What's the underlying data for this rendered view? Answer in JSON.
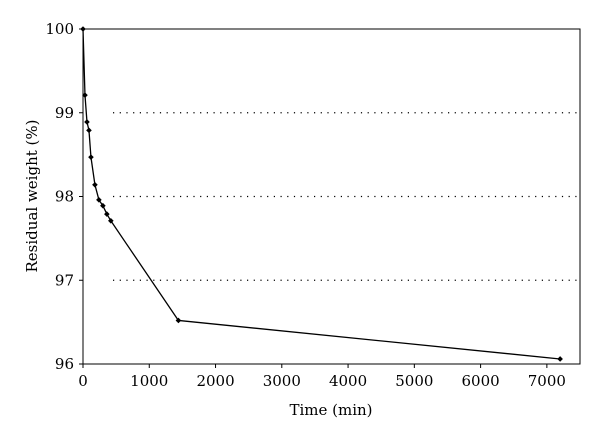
{
  "chart_data": {
    "type": "line",
    "title": "",
    "xlabel": "Time (min)",
    "ylabel": "Residual weight (%)",
    "xlim": [
      0,
      7500
    ],
    "ylim": [
      96,
      100
    ],
    "x_ticks": [
      0,
      1000,
      2000,
      3000,
      4000,
      5000,
      6000,
      7000
    ],
    "y_ticks": [
      96,
      97,
      98,
      99,
      100
    ],
    "grid": "horizontal dotted at 97, 98, 99",
    "legend": "none",
    "series": [
      {
        "color": "#000000",
        "marker": "diamond",
        "x": [
          0,
          30,
          60,
          90,
          120,
          180,
          240,
          300,
          360,
          420,
          1440,
          7200
        ],
        "y": [
          100.0,
          99.21,
          98.89,
          98.79,
          98.47,
          98.14,
          97.96,
          97.89,
          97.79,
          97.71,
          96.52,
          96.06
        ]
      }
    ]
  }
}
